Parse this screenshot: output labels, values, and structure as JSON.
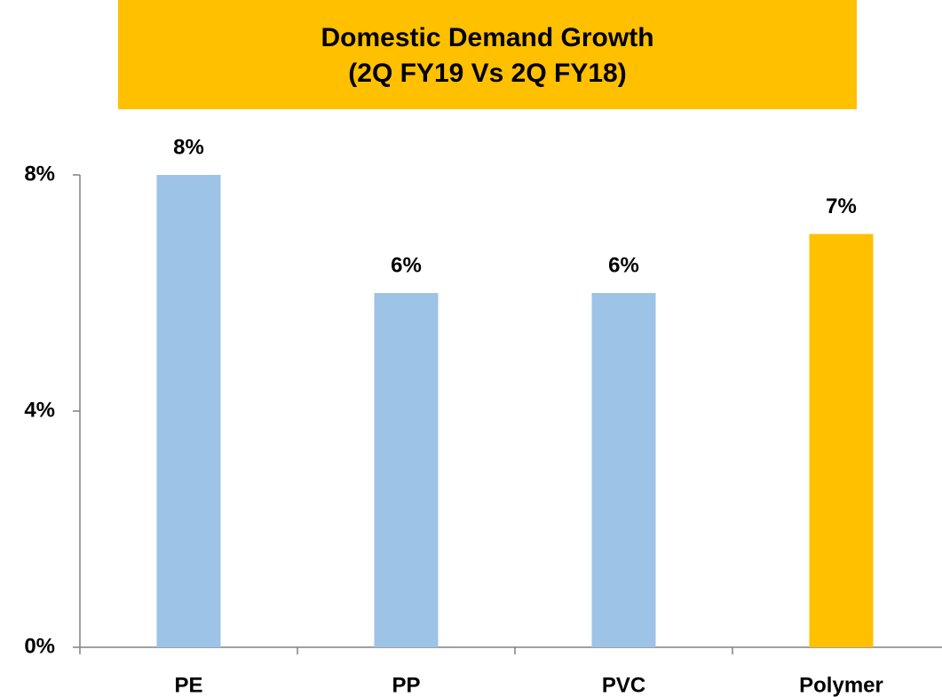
{
  "chart_data": {
    "type": "bar",
    "title": [
      "Domestic Demand Growth",
      "(2Q FY19 Vs 2Q FY18)"
    ],
    "categories": [
      "PE",
      "PP",
      "PVC",
      "Polymer"
    ],
    "values": [
      8,
      6,
      6,
      7
    ],
    "value_labels": [
      "8%",
      "6%",
      "6%",
      "7%"
    ],
    "colors": [
      "#9dc3e6",
      "#9dc3e6",
      "#9dc3e6",
      "#ffc000"
    ],
    "ylim": [
      0,
      8
    ],
    "yticks": [
      {
        "value": 0,
        "label": "0%"
      },
      {
        "value": 4,
        "label": "4%"
      },
      {
        "value": 8,
        "label": "8%"
      }
    ],
    "grid": false
  }
}
